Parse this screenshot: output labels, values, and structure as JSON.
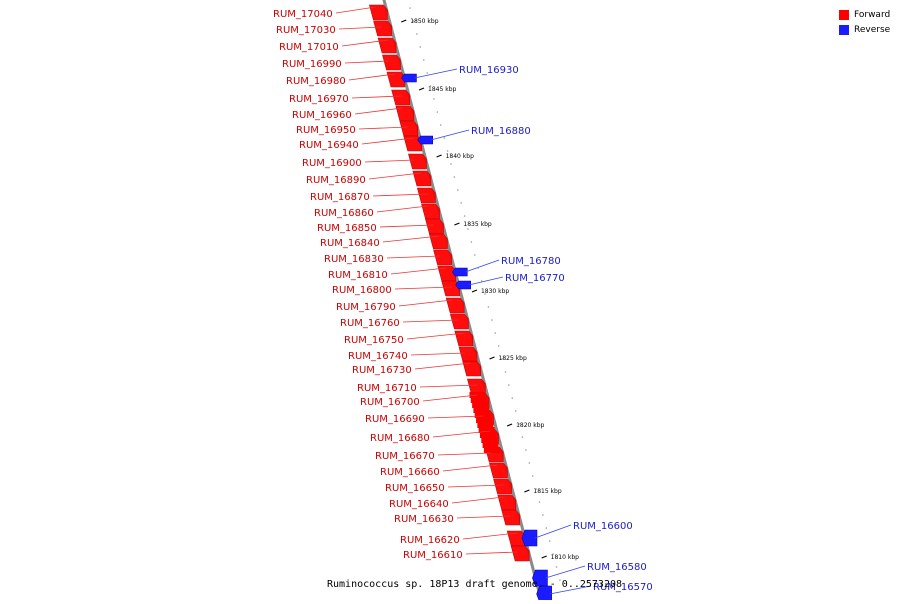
{
  "legend": {
    "forward_label": "Forward",
    "reverse_label": "Reverse",
    "forward_color": "#ff0000",
    "reverse_color": "#1b1bff"
  },
  "caption": "Ruminococcus sp. 18P13 draft genome. - 0..2573208",
  "axis_ticks": [
    "1850 kbp",
    "1845 kbp",
    "1840 kbp",
    "1835 kbp",
    "1830 kbp",
    "1825 kbp",
    "1820 kbp",
    "1815 kbp",
    "1810 kbp"
  ],
  "forward_genes": [
    "RUM_17040",
    "RUM_17030",
    "RUM_17010",
    "RUM_16990",
    "RUM_16980",
    "RUM_16970",
    "RUM_16960",
    "RUM_16950",
    "RUM_16940",
    "RUM_16900",
    "RUM_16890",
    "RUM_16870",
    "RUM_16860",
    "RUM_16850",
    "RUM_16840",
    "RUM_16830",
    "RUM_16810",
    "RUM_16800",
    "RUM_16790",
    "RUM_16760",
    "RUM_16750",
    "RUM_16740",
    "RUM_16730",
    "RUM_16710",
    "RUM_16700",
    "RUM_16690",
    "RUM_16680",
    "RUM_16670",
    "RUM_16660",
    "RUM_16650",
    "RUM_16640",
    "RUM_16630",
    "RUM_16620",
    "RUM_16610"
  ],
  "reverse_genes": [
    "RUM_16930",
    "RUM_16880",
    "RUM_16780",
    "RUM_16770",
    "RUM_16600",
    "RUM_16580",
    "RUM_16570"
  ]
}
